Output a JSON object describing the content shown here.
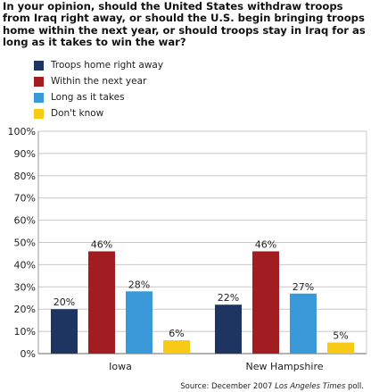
{
  "title": "In your opinion, should the United States withdraw troops from Iraq right away, or should the U.S. begin bringing troops home within the next year, or should troops stay in Iraq for as long as it takes to win the war?",
  "source": {
    "prefix": "Source: December 2007 ",
    "publication": "Los Angeles Times",
    "suffix": " poll."
  },
  "chart_data": {
    "type": "bar",
    "categories": [
      "Iowa",
      "New Hampshire"
    ],
    "series": [
      {
        "name": "Troops home right away",
        "color": "#1f3561",
        "values": [
          20,
          22
        ]
      },
      {
        "name": "Within the next year",
        "color": "#a11d21",
        "values": [
          46,
          46
        ]
      },
      {
        "name": "Long as it takes",
        "color": "#3a9ad9",
        "values": [
          28,
          27
        ]
      },
      {
        "name": "Don't know",
        "color": "#f7cb15",
        "values": [
          6,
          5
        ]
      }
    ],
    "ylim": [
      0,
      100
    ],
    "yticks": [
      "0%",
      "10%",
      "20%",
      "30%",
      "40%",
      "50%",
      "60%",
      "70%",
      "80%",
      "90%",
      "100%"
    ],
    "value_suffix": "%",
    "grid": true,
    "legend_position": "top-left"
  }
}
